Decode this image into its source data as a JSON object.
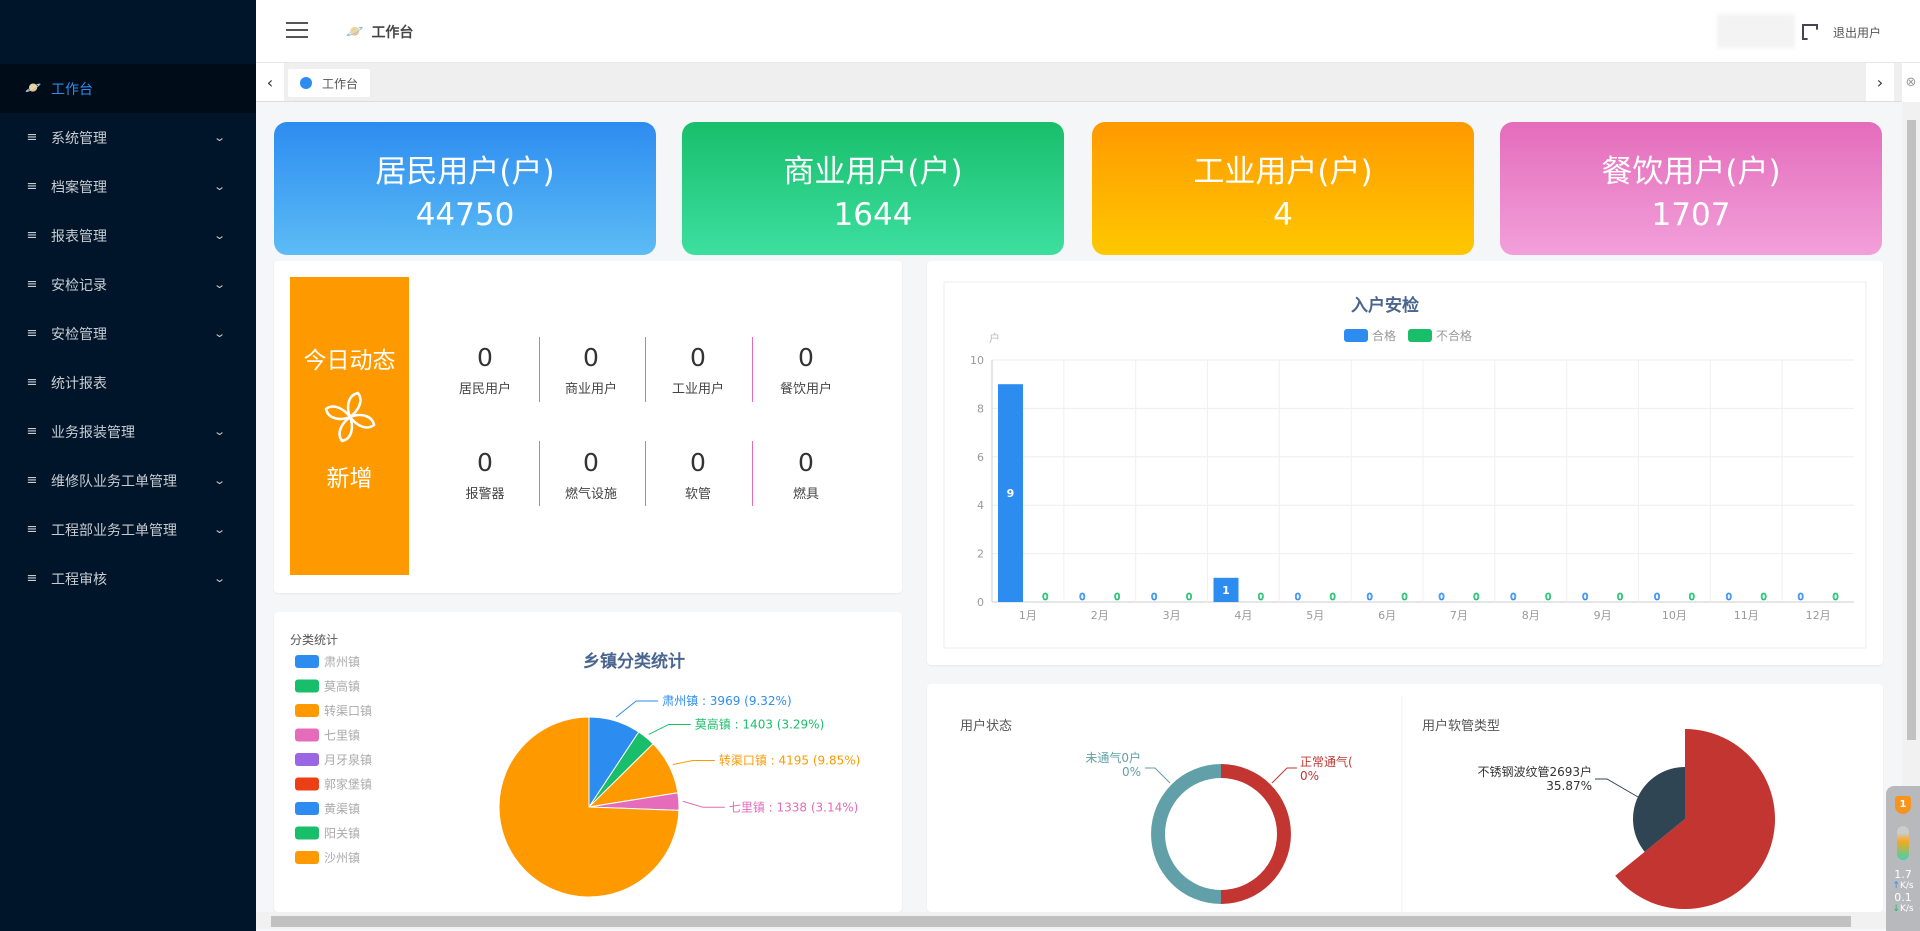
{
  "sidebar": {
    "items": [
      {
        "label": "工作台",
        "icon": "planet-icon",
        "active": true
      },
      {
        "label": "系统管理",
        "icon": "menu-icon",
        "expandable": true
      },
      {
        "label": "档案管理",
        "icon": "menu-icon",
        "expandable": true
      },
      {
        "label": "报表管理",
        "icon": "menu-icon",
        "expandable": true
      },
      {
        "label": "安检记录",
        "icon": "menu-icon",
        "expandable": true
      },
      {
        "label": "安检管理",
        "icon": "menu-icon",
        "expandable": true
      },
      {
        "label": "统计报表",
        "icon": "menu-icon",
        "expandable": false
      },
      {
        "label": "业务报装管理",
        "icon": "menu-icon",
        "expandable": true
      },
      {
        "label": "维修队业务工单管理",
        "icon": "menu-icon",
        "expandable": true
      },
      {
        "label": "工程部业务工单管理",
        "icon": "menu-icon",
        "expandable": true
      },
      {
        "label": "工程审核",
        "icon": "menu-icon",
        "expandable": true
      }
    ]
  },
  "header": {
    "breadcrumb": "工作台",
    "logout": "退出用户"
  },
  "tabs": [
    {
      "label": "工作台",
      "active": true
    }
  ],
  "cards": [
    {
      "title": "居民用户(户)",
      "value": "44750",
      "colors": [
        "#2d8cf0",
        "#5cbcf5"
      ]
    },
    {
      "title": "商业用户(户)",
      "value": "1644",
      "colors": [
        "#19be6b",
        "#3ddfa0"
      ]
    },
    {
      "title": "工业用户(户)",
      "value": "4",
      "colors": [
        "#ff9900",
        "#ffc800"
      ]
    },
    {
      "title": "餐饮用户(户)",
      "value": "1707",
      "colors": [
        "#e46cbb",
        "#f2a0da"
      ]
    }
  ],
  "today": {
    "title_top": "今日动态",
    "title_bottom": "新增",
    "stats": [
      {
        "value": "0",
        "label": "居民用户"
      },
      {
        "value": "0",
        "label": "商业用户"
      },
      {
        "value": "0",
        "label": "工业用户"
      },
      {
        "value": "0",
        "label": "餐饮用户"
      },
      {
        "value": "0",
        "label": "报警器"
      },
      {
        "value": "0",
        "label": "燃气设施"
      },
      {
        "value": "0",
        "label": "软管"
      },
      {
        "value": "0",
        "label": "燃具"
      }
    ]
  },
  "chart_data": [
    {
      "type": "bar",
      "title": "入户安检",
      "ylabel": "户",
      "ylim": [
        0,
        10
      ],
      "yticks": [
        0,
        2,
        4,
        6,
        8,
        10
      ],
      "grid": true,
      "legend_position": "top",
      "categories": [
        "1月",
        "2月",
        "3月",
        "4月",
        "5月",
        "6月",
        "7月",
        "8月",
        "9月",
        "10月",
        "11月",
        "12月"
      ],
      "series": [
        {
          "name": "合格",
          "color": "#2d8cf0",
          "values": [
            9,
            0,
            0,
            1,
            0,
            0,
            0,
            0,
            0,
            0,
            0,
            0
          ]
        },
        {
          "name": "不合格",
          "color": "#19be6b",
          "values": [
            0,
            0,
            0,
            0,
            0,
            0,
            0,
            0,
            0,
            0,
            0,
            0
          ]
        }
      ]
    },
    {
      "type": "pie",
      "title": "乡镇分类统计",
      "legend_title": "分类统计",
      "legend_position": "left",
      "legend": [
        {
          "name": "肃州镇",
          "color": "#2d8cf0"
        },
        {
          "name": "莫高镇",
          "color": "#19be6b"
        },
        {
          "name": "转渠口镇",
          "color": "#ff9900"
        },
        {
          "name": "七里镇",
          "color": "#e46cbb"
        },
        {
          "name": "月牙泉镇",
          "color": "#9a66e4"
        },
        {
          "name": "郭家堡镇",
          "color": "#ed3f14"
        },
        {
          "name": "黄渠镇",
          "color": "#2d8cf0"
        },
        {
          "name": "阳关镇",
          "color": "#19be6b"
        },
        {
          "name": "沙州镇",
          "color": "#ff9900"
        }
      ],
      "slices": [
        {
          "name": "肃州镇",
          "value": 3969,
          "percent": "9.32%",
          "color": "#2d8cf0",
          "label": "肃州镇 : 3969 (9.32%)"
        },
        {
          "name": "莫高镇",
          "value": 1403,
          "percent": "3.29%",
          "color": "#19be6b",
          "label": "莫高镇 : 1403 (3.29%)"
        },
        {
          "name": "转渠口镇",
          "value": 4195,
          "percent": "9.85%",
          "color": "#ff9900",
          "label": "转渠口镇 : 4195 (9.85%)"
        },
        {
          "name": "七里镇",
          "value": 1338,
          "percent": "3.14%",
          "color": "#e46cbb",
          "label": "七里镇 : 1338 (3.14%)"
        }
      ]
    },
    {
      "type": "pie",
      "title": "用户状态",
      "donut": true,
      "slices": [
        {
          "label_line1": "正常通气(",
          "label_line2": "0%",
          "color": "#c23531"
        },
        {
          "label_line1": "未通气0户",
          "label_line2": "0%",
          "color": "#61a0a8"
        }
      ]
    },
    {
      "type": "pie",
      "title": "用户软管类型",
      "rose": true,
      "slices": [
        {
          "label_line1": "不锈钢波纹管2693户",
          "label_line2": "35.87%",
          "percent": 35.87,
          "color": "#2f4554"
        },
        {
          "percent": 64.13,
          "color": "#c23531"
        }
      ]
    }
  ],
  "widget": {
    "up": "1.7",
    "up_unit": "K/s",
    "down": "0.1",
    "down_unit": "K/s",
    "badge": "1"
  }
}
